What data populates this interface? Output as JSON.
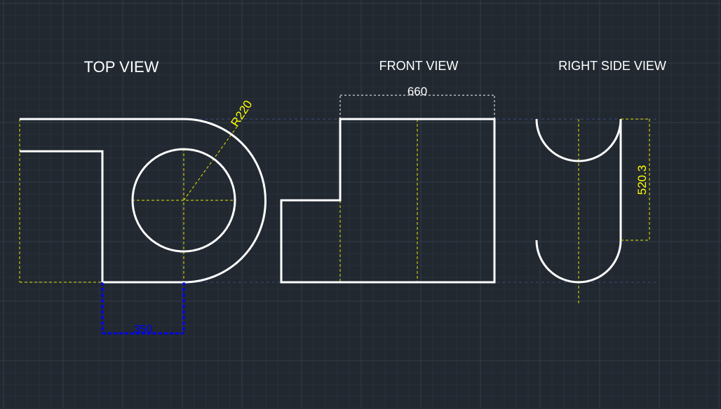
{
  "drawing": {
    "views": {
      "top": {
        "label": "TOP VIEW"
      },
      "front": {
        "label": "FRONT VIEW"
      },
      "right_side": {
        "label": "RIGHT SIDE VIEW"
      }
    },
    "dimensions": {
      "radius": "R220",
      "front_width": "660",
      "side_height": "520.3",
      "top_width": "350"
    },
    "colors": {
      "background": "#212830",
      "grid_minor": "#2a313b",
      "grid_major": "#343c48",
      "object_line": "#ffffff",
      "hidden_center_line": "#e6e600",
      "dimension_yellow": "#ffff00",
      "dimension_white": "#ffffff",
      "dimension_selected": "#0000ff",
      "construction_line": "#3c4a80"
    }
  }
}
